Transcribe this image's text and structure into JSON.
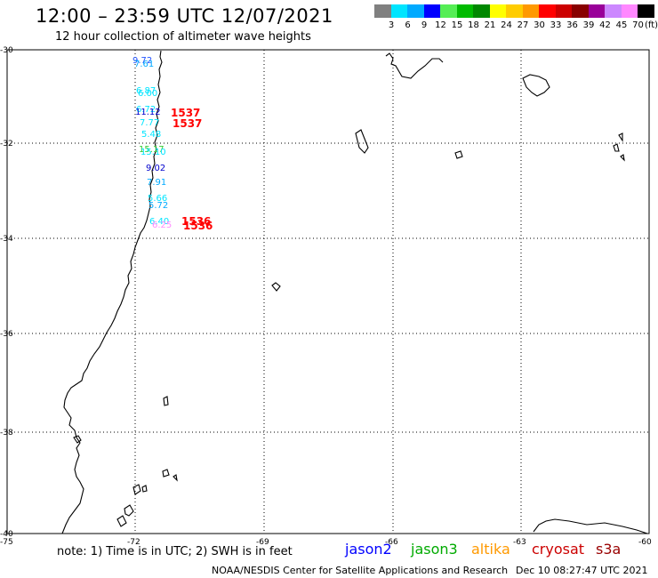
{
  "header": {
    "title": "12:00 – 23:59 UTC 12/07/2021",
    "subtitle": "12 hour collection of altimeter wave heights"
  },
  "colorbar": {
    "colors": [
      "#808080",
      "#00e5ff",
      "#00aaff",
      "#0000ff",
      "#55ee55",
      "#00bb00",
      "#008800",
      "#ffff00",
      "#ffcc00",
      "#ff9900",
      "#ff0000",
      "#cc0000",
      "#880000",
      "#990099",
      "#cc88ff",
      "#ff88ff",
      "#000000"
    ],
    "labels": [
      "3",
      "6",
      "9",
      "12",
      "15",
      "18",
      "21",
      "24",
      "27",
      "30",
      "33",
      "36",
      "39",
      "42",
      "45",
      "70"
    ],
    "unit": "(ft)"
  },
  "map": {
    "lat_labels": [
      "-30",
      "-32",
      "-34",
      "-36",
      "-38",
      "-40"
    ],
    "lon_labels": [
      "-75",
      "-72",
      "-69",
      "-66",
      "-63",
      "-60"
    ]
  },
  "observations": [
    {
      "text": "9.72",
      "color": "#2255ff"
    },
    {
      "text": "7.61",
      "color": "#00aaff"
    },
    {
      "text": "6.87",
      "color": "#00e5ff"
    },
    {
      "text": "6.00",
      "color": "#00e5ff"
    },
    {
      "text": "6.72",
      "color": "#00e5ff"
    },
    {
      "text": "11.12",
      "color": "#0000cc"
    },
    {
      "text": "7.77",
      "color": "#00e5ff"
    },
    {
      "text": "5.48",
      "color": "#00e5ff"
    },
    {
      "text": "15.17",
      "color": "#33cc33"
    },
    {
      "text": "15.10",
      "color": "#00e5ff"
    },
    {
      "text": "9.02",
      "color": "#0000cc"
    },
    {
      "text": "7.91",
      "color": "#00aaff"
    },
    {
      "text": "5.66",
      "color": "#00e5ff"
    },
    {
      "text": "5.72",
      "color": "#00aaff"
    },
    {
      "text": "6.40",
      "color": "#00e5ff"
    },
    {
      "text": "6.25",
      "color": "#ff88ff"
    }
  ],
  "times": [
    {
      "text": "1537",
      "color": "#ff0000"
    },
    {
      "text": "1537",
      "color": "#ff0000"
    },
    {
      "text": "1536",
      "color": "#ff0000"
    },
    {
      "text": "1536",
      "color": "#ff0000"
    }
  ],
  "note": "note: 1) Time is in UTC; 2) SWH is in feet",
  "legend": [
    {
      "label": "jason2",
      "color": "#0000ff"
    },
    {
      "label": "jason3",
      "color": "#00aa00"
    },
    {
      "label": "altika",
      "color": "#ff9900"
    },
    {
      "label": "cryosat",
      "color": "#cc0000"
    },
    {
      "label": "s3a",
      "color": "#990000"
    }
  ],
  "footer": {
    "credit": "NOAA/NESDIS Center for Satellite Applications and Research",
    "timestamp": "Dec 10 08:27:47 UTC 2021"
  }
}
